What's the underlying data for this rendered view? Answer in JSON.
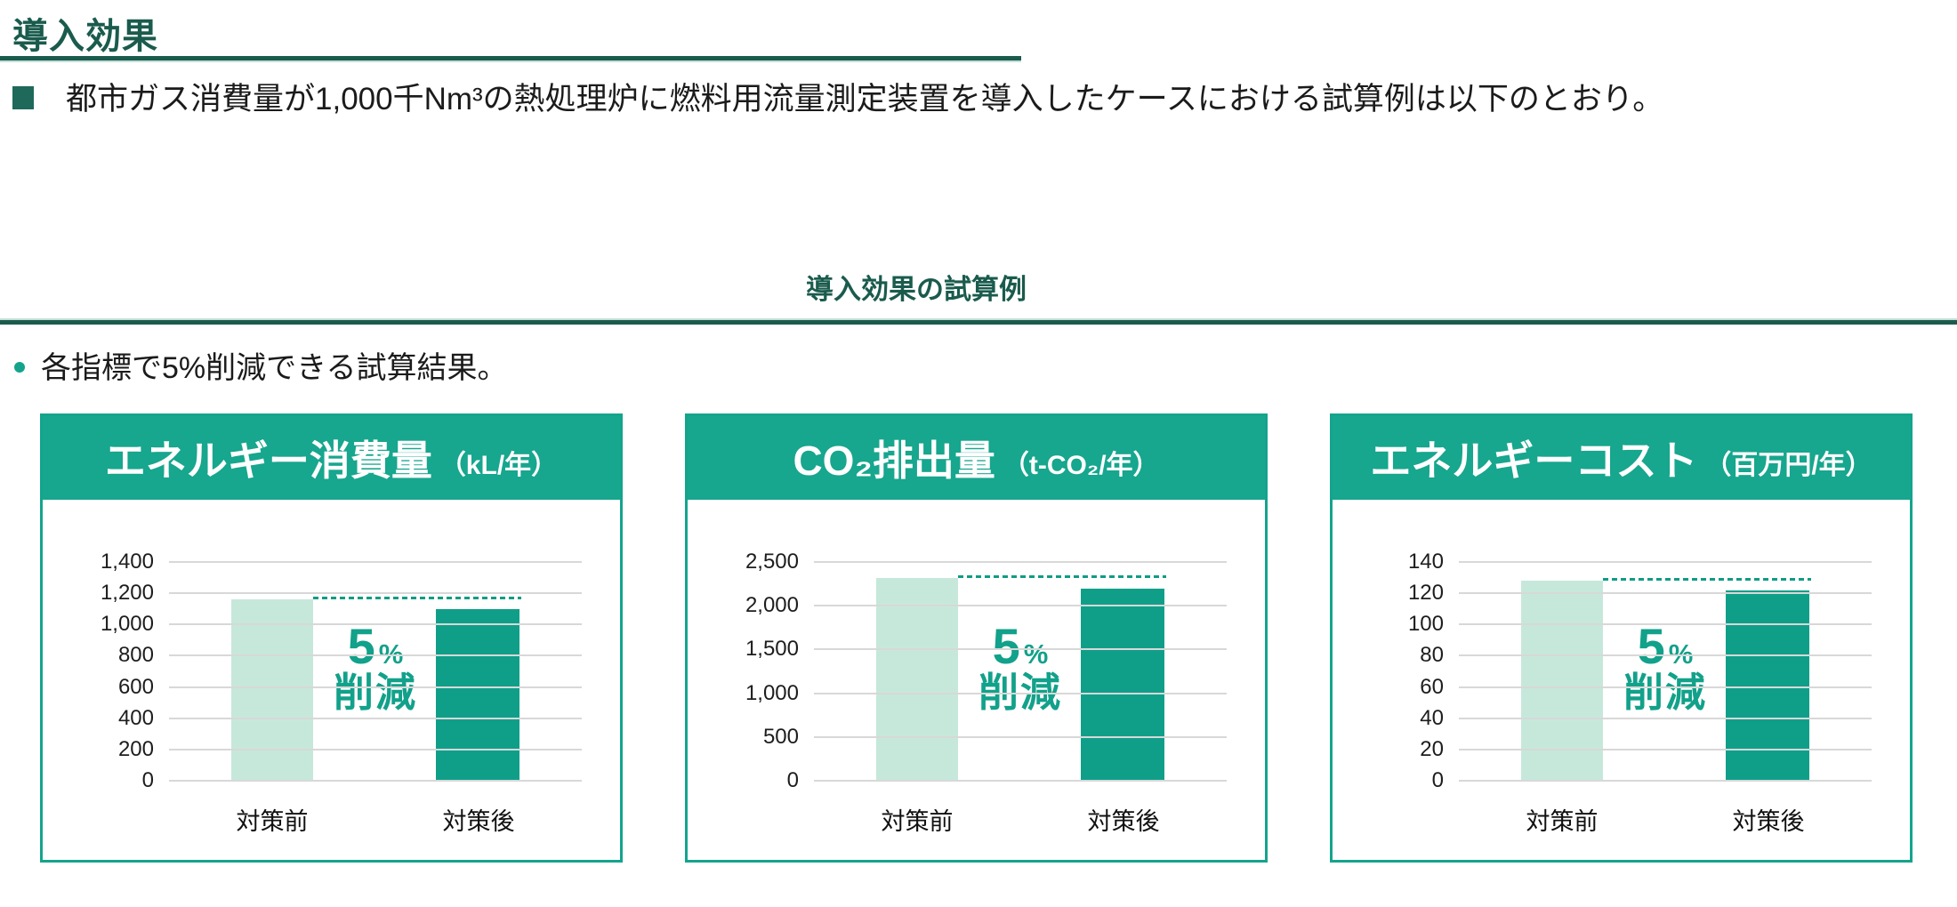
{
  "page": {
    "title": "導入効果",
    "intro_bullet": "都市ガス消費量が1,000千Nm³の熱処理炉に燃料用流量測定装置を導入したケースにおける試算例は以下のとおり。",
    "section_title": "導入効果の試算例",
    "note_bullet": "各指標で5%削減できる試算結果。"
  },
  "colors": {
    "accent_teal": "#17a68e",
    "dark_green": "#1a5b4d",
    "bar_before": "#c6e8db",
    "bar_after": "#0f9f89",
    "gridline": "#d8d8d8",
    "annotation_text": "#12a18a"
  },
  "chart_data": [
    {
      "type": "bar",
      "title": "エネルギー消費量",
      "unit": "（kL/年）",
      "categories": [
        "対策前",
        "対策後"
      ],
      "values": [
        1160,
        1100
      ],
      "ylim": [
        0,
        1400
      ],
      "ystep": 200,
      "grid": true,
      "bar_colors": [
        "#c6e8db",
        "#0f9f89"
      ],
      "annotation": {
        "pct": "5",
        "pct_symbol": "%",
        "label": "削減"
      },
      "baseline_dashed_at": 1160
    },
    {
      "type": "bar",
      "title": "CO₂排出量",
      "unit": "（t-CO₂/年）",
      "categories": [
        "対策前",
        "対策後"
      ],
      "values": [
        2320,
        2200
      ],
      "ylim": [
        0,
        2500
      ],
      "ystep": 500,
      "grid": true,
      "bar_colors": [
        "#c6e8db",
        "#0f9f89"
      ],
      "annotation": {
        "pct": "5",
        "pct_symbol": "%",
        "label": "削減"
      },
      "baseline_dashed_at": 2320
    },
    {
      "type": "bar",
      "title": "エネルギーコスト",
      "unit": "（百万円/年）",
      "categories": [
        "対策前",
        "対策後"
      ],
      "values": [
        128,
        122
      ],
      "ylim": [
        0,
        140
      ],
      "ystep": 20,
      "grid": true,
      "bar_colors": [
        "#c6e8db",
        "#0f9f89"
      ],
      "annotation": {
        "pct": "5",
        "pct_symbol": "%",
        "label": "削減"
      },
      "baseline_dashed_at": 128
    }
  ]
}
